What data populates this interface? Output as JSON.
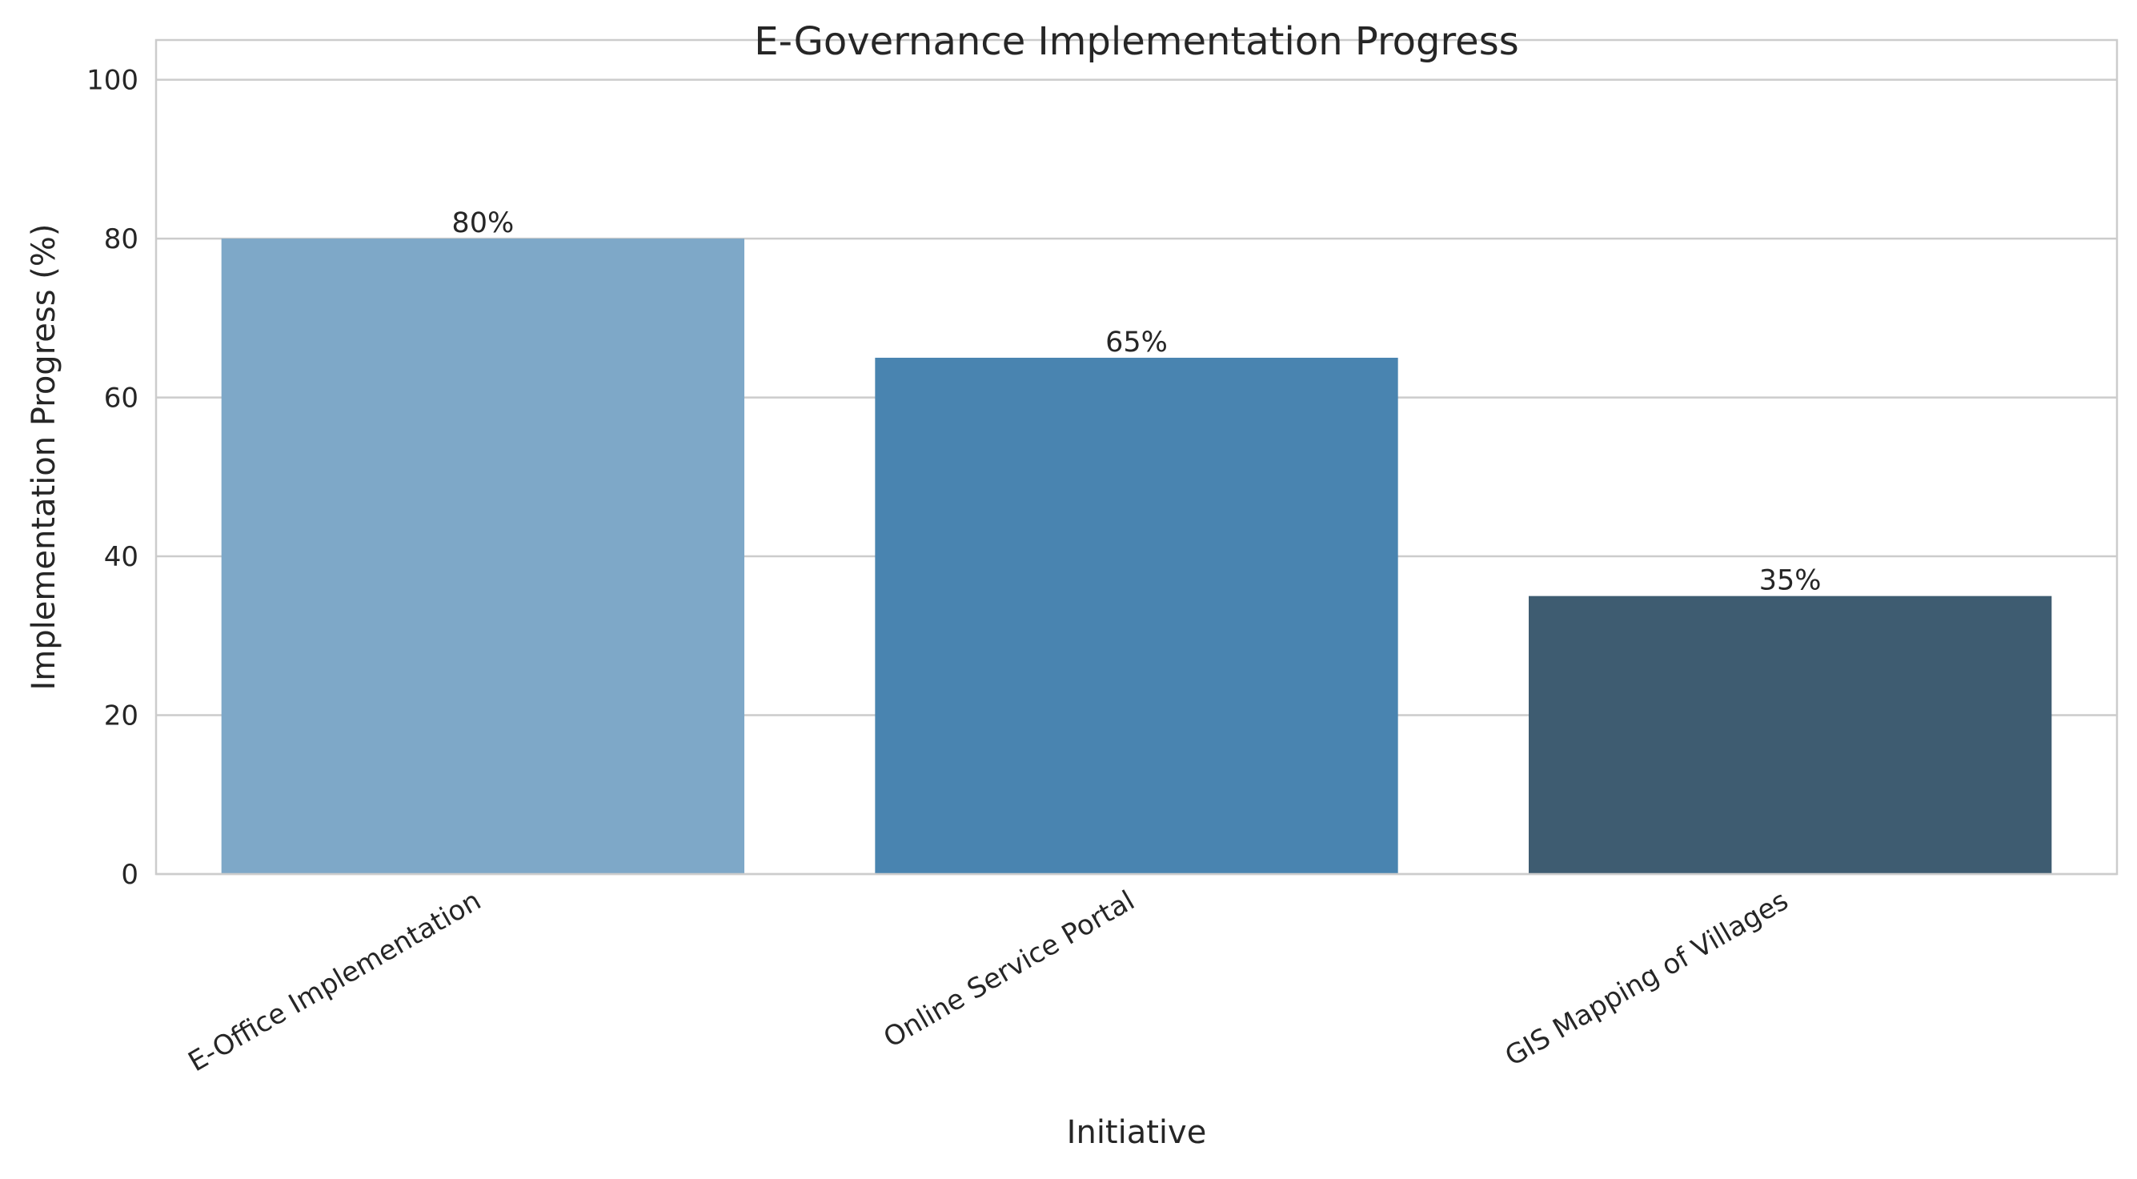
{
  "chart_data": {
    "type": "bar",
    "title": "E-Governance Implementation Progress",
    "xlabel": "Initiative",
    "ylabel": "Implementation Progress (%)",
    "categories": [
      "E-Office Implementation",
      "Online Service Portal",
      "GIS Mapping of Villages"
    ],
    "values": [
      80,
      65,
      35
    ],
    "value_labels": [
      "80%",
      "65%",
      "35%"
    ],
    "colors": [
      "#7ea8c8",
      "#4984b0",
      "#3e5c71"
    ],
    "ylim": [
      0,
      105
    ],
    "yticks": [
      0,
      20,
      40,
      60,
      80,
      100
    ],
    "grid": "horizontal",
    "legend": "none"
  }
}
